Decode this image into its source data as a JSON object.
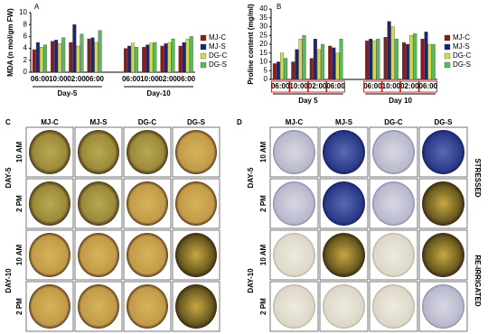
{
  "chart_data": [
    {
      "type": "bar",
      "panel": "A",
      "y_label": "MDA (n mol/gm FW)",
      "categories": [
        "06:00",
        "10:00",
        "02:00",
        "06:00",
        null,
        "06:00",
        "10:00",
        "02:00",
        "06:00"
      ],
      "group_labels": [
        "Day-5",
        "Day-10"
      ],
      "series": [
        {
          "name": "MJ-C",
          "color": "#8b1c1c",
          "values": [
            3.8,
            5.2,
            5.0,
            5.6,
            null,
            4.0,
            4.2,
            4.4,
            4.4
          ]
        },
        {
          "name": "MJ-S",
          "color": "#1f2470",
          "values": [
            5.0,
            5.4,
            8.0,
            5.8,
            null,
            4.4,
            4.6,
            4.8,
            5.0
          ]
        },
        {
          "name": "DG-C",
          "color": "#cfdc4f",
          "values": [
            4.2,
            4.8,
            4.4,
            5.0,
            null,
            4.9,
            4.9,
            5.0,
            5.6
          ]
        },
        {
          "name": "DG-S",
          "color": "#5cb85c",
          "values": [
            4.6,
            5.8,
            6.4,
            7.0,
            null,
            4.2,
            5.0,
            5.6,
            6.0
          ]
        }
      ],
      "ylim": [
        0,
        10
      ],
      "yticks": [
        0,
        2,
        4,
        6,
        8,
        10
      ],
      "tick_label_color": "#000000"
    },
    {
      "type": "bar",
      "panel": "B",
      "y_label": "Proline content (mg/ml)",
      "categories": [
        "06:00",
        "10:00",
        "02:00",
        "06:00",
        null,
        "06:00",
        "10:00",
        "02:00",
        "06:00"
      ],
      "group_labels": [
        "Day 5",
        "Day 10"
      ],
      "series": [
        {
          "name": "MJ-C",
          "color": "#8b1c1c",
          "values": [
            9,
            10,
            12,
            19,
            null,
            22,
            24,
            21,
            23
          ]
        },
        {
          "name": "MJ-S",
          "color": "#1f2470",
          "values": [
            10,
            17,
            23,
            18,
            null,
            23,
            33,
            20,
            27
          ]
        },
        {
          "name": "DG-C",
          "color": "#cfdc4f",
          "values": [
            15,
            23,
            17,
            15,
            null,
            22,
            30,
            25,
            20
          ]
        },
        {
          "name": "DG-S",
          "color": "#5cb85c",
          "values": [
            12,
            25,
            20,
            23,
            null,
            23,
            23,
            26,
            20
          ]
        }
      ],
      "ylim": [
        0,
        40
      ],
      "yticks": [
        0,
        5,
        10,
        15,
        20,
        25,
        30,
        35,
        40
      ],
      "tick_label_color": "#c00000"
    }
  ],
  "panel_c": {
    "label": "C",
    "columns": [
      "MJ-C",
      "MJ-S",
      "DG-C",
      "DG-S"
    ],
    "rows": [
      "10 AM",
      "2 PM",
      "10 AM",
      "2 PM"
    ],
    "groups": [
      "DAY-5",
      "DAY-10"
    ]
  },
  "panel_d": {
    "label": "D",
    "columns": [
      "MJ-C",
      "MJ-S",
      "DG-C",
      "DG-S"
    ],
    "rows": [
      "10 AM",
      "2 PM",
      "10 AM",
      "2 PM"
    ],
    "groups": [
      "DAY-5",
      "DAY-10"
    ],
    "conditions": [
      "STRESSED",
      "RE-IRRIGATED"
    ]
  }
}
